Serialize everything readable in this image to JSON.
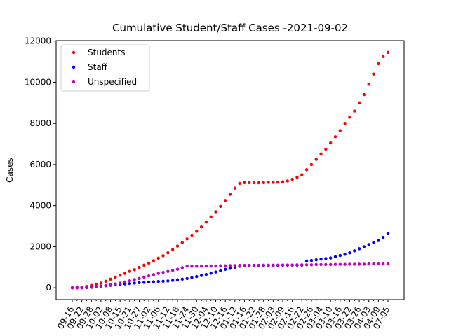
{
  "chart_data": {
    "type": "scatter",
    "title": "Cumulative Student/Staff Cases -2021-09-02",
    "y_label": "Cases",
    "categories": [
      "09-16",
      null,
      "09-22",
      null,
      "09-28",
      null,
      "10-02",
      null,
      "10-08",
      null,
      "10-15",
      null,
      "10-21",
      null,
      "10-27",
      null,
      "11-02",
      null,
      "11-06",
      null,
      "11-12",
      null,
      "11-18",
      null,
      "11-24",
      null,
      "11-30",
      null,
      "12-04",
      null,
      "12-10",
      null,
      "12-16",
      null,
      "01-12",
      null,
      "01-16",
      null,
      "01-22",
      null,
      "01-28",
      null,
      "02-03",
      null,
      "02-09",
      null,
      "02-16",
      null,
      "02-22",
      null,
      "02-26",
      null,
      "03-04",
      null,
      "03-10",
      null,
      "03-16",
      null,
      "03-22",
      null,
      "03-26",
      null,
      "04-03",
      null,
      "04-09",
      null,
      "07-05"
    ],
    "series": [
      {
        "name": "Students",
        "color": "#ff0000",
        "values": [
          0,
          10,
          30,
          70,
          120,
          180,
          230,
          320,
          420,
          520,
          610,
          700,
          800,
          880,
          990,
          1100,
          1200,
          1320,
          1440,
          1560,
          1700,
          1860,
          2030,
          2200,
          2380,
          2560,
          2750,
          2960,
          3200,
          3450,
          3700,
          3960,
          4250,
          4550,
          4850,
          5080,
          5120,
          5120,
          5120,
          5110,
          5120,
          5130,
          5130,
          5140,
          5160,
          5200,
          5280,
          5380,
          5500,
          5750,
          6000,
          6250,
          6520,
          6750,
          7050,
          7350,
          7650,
          8000,
          8300,
          8600,
          9000,
          9400,
          9900,
          10400,
          10900,
          11250,
          11450
        ]
      },
      {
        "name": "Staff",
        "color": "#0000ff",
        "values": [
          0,
          0,
          0,
          10,
          20,
          50,
          75,
          100,
          125,
          150,
          170,
          190,
          210,
          230,
          250,
          265,
          280,
          295,
          310,
          320,
          330,
          360,
          390,
          420,
          450,
          500,
          550,
          600,
          650,
          710,
          770,
          830,
          900,
          950,
          1000,
          1050,
          1080,
          1090,
          1090,
          1090,
          1090,
          1090,
          1090,
          1090,
          1100,
          1100,
          1100,
          1100,
          1100,
          1300,
          1330,
          1360,
          1390,
          1420,
          1450,
          1510,
          1570,
          1630,
          1700,
          1800,
          1900,
          2000,
          2100,
          2200,
          2300,
          2450,
          2650
        ]
      },
      {
        "name": "Unspecified",
        "color": "#bf00bf",
        "values": [
          0,
          0,
          10,
          20,
          40,
          60,
          80,
          110,
          150,
          190,
          230,
          280,
          340,
          400,
          450,
          520,
          580,
          640,
          700,
          750,
          800,
          850,
          900,
          980,
          1050,
          1050,
          1050,
          1050,
          1060,
          1060,
          1060,
          1070,
          1070,
          1080,
          1080,
          1090,
          1090,
          1090,
          1090,
          1090,
          1100,
          1100,
          1100,
          1100,
          1110,
          1110,
          1110,
          1120,
          1120,
          1120,
          1120,
          1130,
          1130,
          1130,
          1130,
          1140,
          1140,
          1140,
          1150,
          1150,
          1150,
          1150,
          1160,
          1160,
          1160,
          1160,
          1160
        ]
      }
    ],
    "ylim": [
      -572.5,
      12022.5
    ],
    "yticks": [
      0,
      2000,
      4000,
      6000,
      8000,
      10000,
      12000
    ],
    "legend": "upper left"
  }
}
